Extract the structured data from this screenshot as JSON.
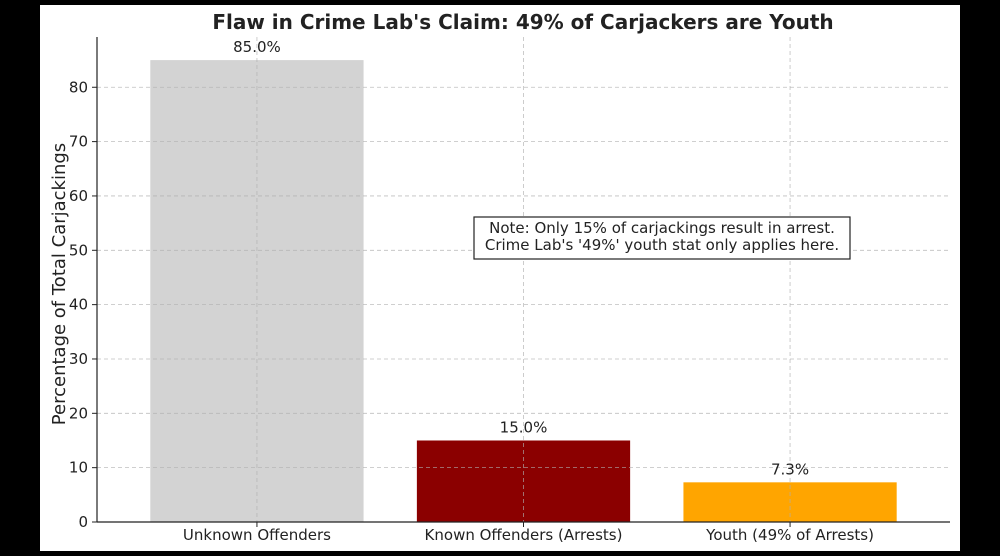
{
  "chart_data": {
    "type": "bar",
    "title": "Flaw in Crime Lab's Claim: 49% of Carjackers are Youth",
    "xlabel": "",
    "ylabel": "Percentage of Total Carjackings",
    "categories": [
      "Unknown Offenders",
      "Known Offenders (Arrests)",
      "Youth (49% of Arrests)"
    ],
    "values": [
      85.0,
      15.0,
      7.3
    ],
    "data_labels": [
      "85.0%",
      "15.0%",
      "7.3%"
    ],
    "colors": [
      "#d3d3d3",
      "#8b0000",
      "#ffa500"
    ],
    "ylim": [
      0,
      89.25
    ],
    "yticks": [
      0,
      10,
      20,
      30,
      40,
      50,
      60,
      70,
      80
    ],
    "grid": true,
    "annotation": {
      "lines": [
        "Note: Only 15% of carjackings result in arrest.",
        "Crime Lab's '49%' youth stat only applies here."
      ]
    }
  }
}
